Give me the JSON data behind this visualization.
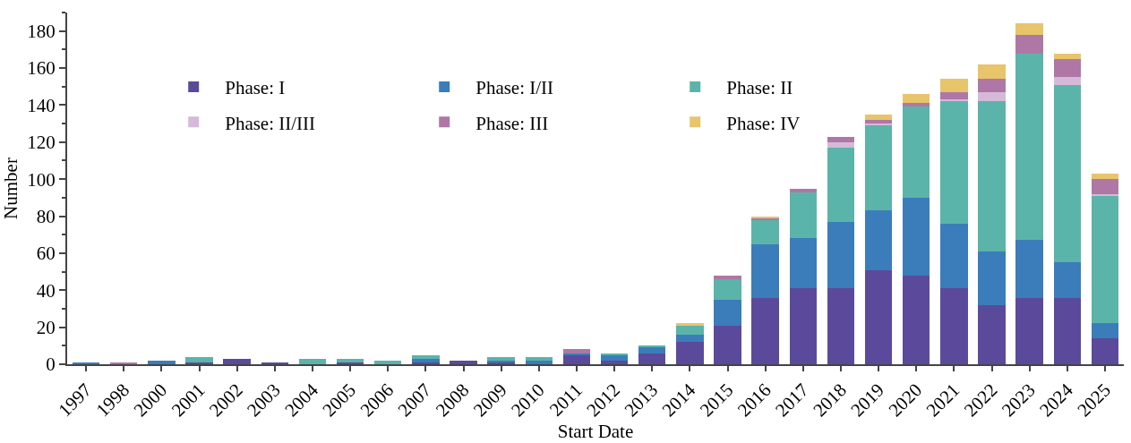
{
  "chart_data": {
    "type": "bar",
    "stacked": true,
    "xlabel": "Start Date",
    "ylabel": "Number",
    "categories": [
      "1997",
      "1998",
      "2000",
      "2001",
      "2002",
      "2003",
      "2004",
      "2005",
      "2006",
      "2007",
      "2008",
      "2009",
      "2010",
      "2011",
      "2012",
      "2013",
      "2014",
      "2015",
      "2016",
      "2017",
      "2018",
      "2019",
      "2020",
      "2021",
      "2022",
      "2023",
      "2024",
      "2025"
    ],
    "series": [
      {
        "name": "Phase: I",
        "color": "#5b4a9b",
        "values": [
          0,
          0,
          0,
          1,
          3,
          1,
          0,
          1,
          0,
          1,
          2,
          1,
          0,
          5,
          2,
          6,
          12,
          21,
          36,
          41,
          41,
          51,
          48,
          41,
          32,
          36,
          36,
          14
        ]
      },
      {
        "name": "Phase: I/II",
        "color": "#3a7dba",
        "values": [
          1,
          0,
          2,
          0,
          0,
          0,
          0,
          0,
          0,
          2,
          0,
          1,
          2,
          1,
          3,
          3,
          4,
          14,
          29,
          27,
          36,
          32,
          42,
          35,
          29,
          31,
          19,
          8
        ]
      },
      {
        "name": "Phase: II",
        "color": "#5ab4aa",
        "values": [
          0,
          0,
          0,
          3,
          0,
          0,
          3,
          2,
          2,
          2,
          0,
          2,
          2,
          0,
          1,
          1,
          5,
          11,
          13,
          25,
          40,
          46,
          49,
          66,
          81,
          101,
          96,
          69
        ]
      },
      {
        "name": "Phase: II/III",
        "color": "#d5b9d9",
        "values": [
          0,
          0,
          0,
          0,
          0,
          0,
          0,
          0,
          0,
          0,
          0,
          0,
          0,
          0,
          0,
          0,
          0,
          0,
          0,
          0,
          3,
          1,
          0,
          1,
          5,
          0,
          4,
          1
        ]
      },
      {
        "name": "Phase: III",
        "color": "#ae77a6",
        "values": [
          0,
          1,
          0,
          0,
          0,
          0,
          0,
          0,
          0,
          0,
          0,
          0,
          0,
          2,
          0,
          0,
          0,
          2,
          1,
          2,
          3,
          2,
          2,
          4,
          7,
          10,
          10,
          8
        ]
      },
      {
        "name": "Phase: IV",
        "color": "#e8c46b",
        "values": [
          0,
          0,
          0,
          0,
          0,
          0,
          0,
          0,
          0,
          0,
          0,
          0,
          0,
          0,
          0,
          0,
          1,
          0,
          1,
          0,
          0,
          3,
          5,
          7,
          8,
          6,
          3,
          3
        ]
      }
    ],
    "ylim": [
      0,
      190
    ],
    "yticks": [
      0,
      20,
      40,
      60,
      80,
      100,
      120,
      140,
      160,
      180
    ],
    "grid": false,
    "legend": "top left"
  }
}
